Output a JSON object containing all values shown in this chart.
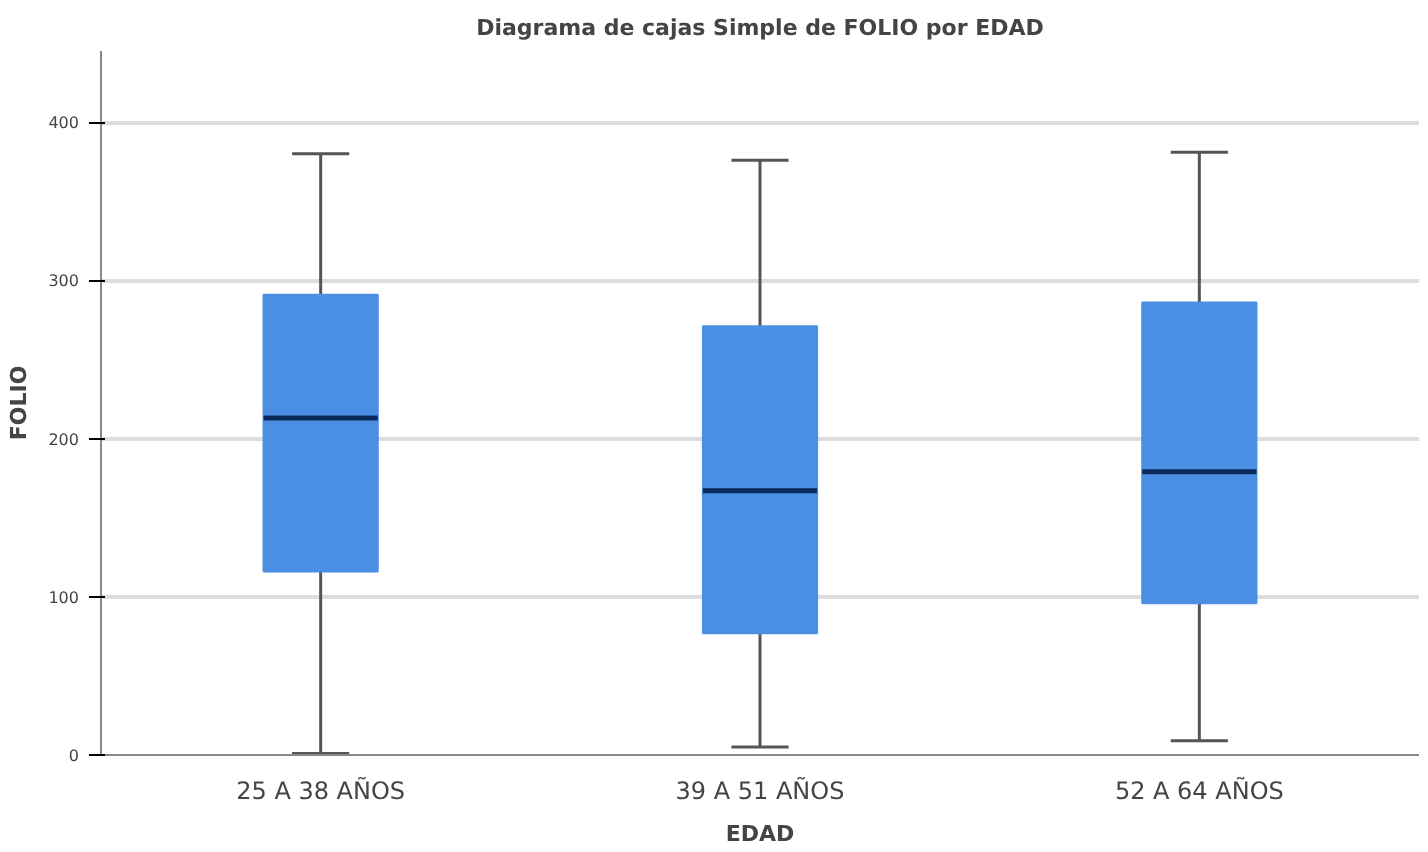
{
  "chart_data": {
    "type": "box",
    "title": "Diagrama de cajas Simple de FOLIO por EDAD",
    "xlabel": "EDAD",
    "ylabel": "FOLIO",
    "categories": [
      "25 A 38 AÑOS",
      "39 A 51 AÑOS",
      "52 A 64 AÑOS"
    ],
    "series": [
      {
        "color": "#4a8fe3",
        "boxes": [
          {
            "low": 1,
            "q1": 116,
            "median": 213,
            "q3": 291,
            "high": 380
          },
          {
            "low": 5,
            "q1": 77,
            "median": 167,
            "q3": 271,
            "high": 376
          },
          {
            "low": 9,
            "q1": 96,
            "median": 179,
            "q3": 286,
            "high": 381
          }
        ]
      }
    ],
    "ylim": [
      0,
      445
    ],
    "yticks": [
      0,
      100,
      200,
      300,
      400
    ],
    "grid": "y"
  }
}
